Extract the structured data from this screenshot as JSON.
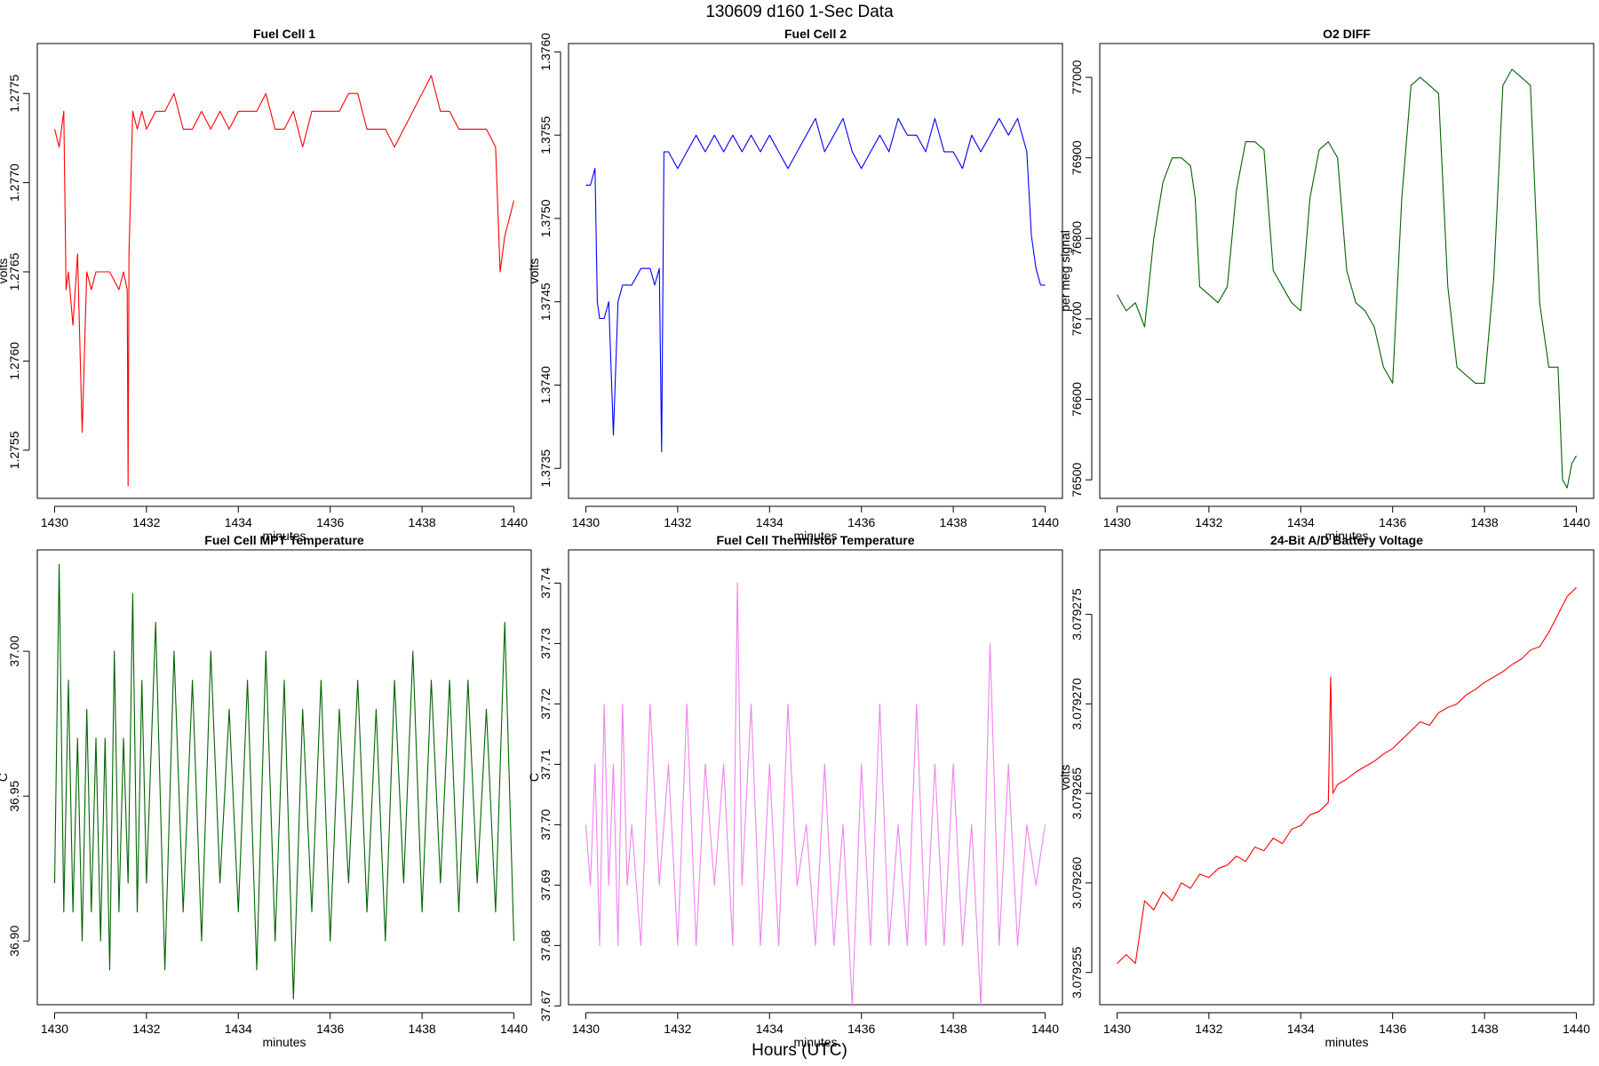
{
  "page": {
    "title": "130609   d160   1-Sec Data",
    "x_outer_label": "Hours (UTC)"
  },
  "chart_data": [
    {
      "type": "line",
      "title": "Fuel Cell 1",
      "xlabel": "minutes",
      "ylabel": "volts",
      "color": "#ff0000",
      "xlim": [
        1430,
        1440
      ],
      "ylim": [
        1.27523,
        1.27778
      ],
      "xticks": [
        1430,
        1432,
        1434,
        1436,
        1438,
        1440
      ],
      "xtick_labels": [
        "1430",
        "1432",
        "1434",
        "1436",
        "1438",
        "1440"
      ],
      "yticks": [
        1.2755,
        1.276,
        1.2765,
        1.277,
        1.2775
      ],
      "ytick_labels": [
        "1.2755",
        "1.2760",
        "1.2765",
        "1.2770",
        "1.2775"
      ],
      "series": [
        {
          "x": [
            1430.0,
            1430.1,
            1430.2,
            1430.25,
            1430.3,
            1430.4,
            1430.5,
            1430.6,
            1430.7,
            1430.8,
            1430.9,
            1431.0,
            1431.2,
            1431.4,
            1431.5,
            1431.58,
            1431.6,
            1431.62,
            1431.7,
            1431.8,
            1431.9,
            1432.0,
            1432.2,
            1432.4,
            1432.6,
            1432.8,
            1433.0,
            1433.2,
            1433.4,
            1433.6,
            1433.8,
            1434.0,
            1434.2,
            1434.4,
            1434.6,
            1434.8,
            1435.0,
            1435.2,
            1435.4,
            1435.6,
            1435.8,
            1436.0,
            1436.2,
            1436.4,
            1436.6,
            1436.8,
            1437.0,
            1437.2,
            1437.4,
            1437.6,
            1437.8,
            1438.0,
            1438.2,
            1438.4,
            1438.6,
            1438.8,
            1439.0,
            1439.2,
            1439.4,
            1439.6,
            1439.7,
            1439.8,
            1439.9,
            1440.0
          ],
          "y": [
            1.2773,
            1.2772,
            1.2774,
            1.2764,
            1.2765,
            1.2762,
            1.2766,
            1.2756,
            1.2765,
            1.2764,
            1.2765,
            1.2765,
            1.2765,
            1.2764,
            1.2765,
            1.2764,
            1.2753,
            1.2766,
            1.2774,
            1.2773,
            1.2774,
            1.2773,
            1.2774,
            1.2774,
            1.2775,
            1.2773,
            1.2773,
            1.2774,
            1.2773,
            1.2774,
            1.2773,
            1.2774,
            1.2774,
            1.2774,
            1.2775,
            1.2773,
            1.2773,
            1.2774,
            1.2772,
            1.2774,
            1.2774,
            1.2774,
            1.2774,
            1.2775,
            1.2775,
            1.2773,
            1.2773,
            1.2773,
            1.2772,
            1.2773,
            1.2774,
            1.2775,
            1.2776,
            1.2774,
            1.2774,
            1.2773,
            1.2773,
            1.2773,
            1.2773,
            1.2772,
            1.2765,
            1.2767,
            1.2768,
            1.2769
          ]
        }
      ]
    },
    {
      "type": "line",
      "title": "Fuel Cell 2",
      "xlabel": "minutes",
      "ylabel": "volts",
      "color": "#0000ff",
      "xlim": [
        1430,
        1440
      ],
      "ylim": [
        1.37332,
        1.37605
      ],
      "xticks": [
        1430,
        1432,
        1434,
        1436,
        1438,
        1440
      ],
      "xtick_labels": [
        "1430",
        "1432",
        "1434",
        "1436",
        "1438",
        "1440"
      ],
      "yticks": [
        1.3735,
        1.374,
        1.3745,
        1.375,
        1.3755,
        1.376
      ],
      "ytick_labels": [
        "1.3735",
        "1.3740",
        "1.3745",
        "1.3750",
        "1.3755",
        "1.3760"
      ],
      "series": [
        {
          "x": [
            1430.0,
            1430.1,
            1430.2,
            1430.25,
            1430.3,
            1430.4,
            1430.5,
            1430.6,
            1430.7,
            1430.8,
            1430.9,
            1431.0,
            1431.2,
            1431.4,
            1431.5,
            1431.6,
            1431.65,
            1431.7,
            1431.8,
            1432.0,
            1432.2,
            1432.4,
            1432.6,
            1432.8,
            1433.0,
            1433.2,
            1433.4,
            1433.6,
            1433.8,
            1434.0,
            1434.2,
            1434.4,
            1434.6,
            1434.8,
            1435.0,
            1435.2,
            1435.4,
            1435.6,
            1435.8,
            1436.0,
            1436.2,
            1436.4,
            1436.6,
            1436.8,
            1437.0,
            1437.2,
            1437.4,
            1437.6,
            1437.8,
            1438.0,
            1438.2,
            1438.4,
            1438.6,
            1438.8,
            1439.0,
            1439.2,
            1439.4,
            1439.6,
            1439.7,
            1439.8,
            1439.9,
            1440.0
          ],
          "y": [
            1.3752,
            1.3752,
            1.3753,
            1.3745,
            1.3744,
            1.3744,
            1.3745,
            1.3737,
            1.3745,
            1.3746,
            1.3746,
            1.3746,
            1.3747,
            1.3747,
            1.3746,
            1.3747,
            1.3736,
            1.3754,
            1.3754,
            1.3753,
            1.3754,
            1.3755,
            1.3754,
            1.3755,
            1.3754,
            1.3755,
            1.3754,
            1.3755,
            1.3754,
            1.3755,
            1.3754,
            1.3753,
            1.3754,
            1.3755,
            1.3756,
            1.3754,
            1.3755,
            1.3756,
            1.3754,
            1.3753,
            1.3754,
            1.3755,
            1.3754,
            1.3756,
            1.3755,
            1.3755,
            1.3754,
            1.3756,
            1.3754,
            1.3754,
            1.3753,
            1.3755,
            1.3754,
            1.3755,
            1.3756,
            1.3755,
            1.3756,
            1.3754,
            1.3749,
            1.3747,
            1.3746,
            1.3746
          ]
        }
      ]
    },
    {
      "type": "line",
      "title": "O2 DIFF",
      "xlabel": "minutes",
      "ylabel": "per meg signal",
      "color": "#006400",
      "xlim": [
        1430,
        1440
      ],
      "ylim": [
        76477,
        77042
      ],
      "xticks": [
        1430,
        1432,
        1434,
        1436,
        1438,
        1440
      ],
      "xtick_labels": [
        "1430",
        "1432",
        "1434",
        "1436",
        "1438",
        "1440"
      ],
      "yticks": [
        76500,
        76600,
        76700,
        76800,
        76900,
        77000
      ],
      "ytick_labels": [
        "76500",
        "76600",
        "76700",
        "76800",
        "76900",
        "77000"
      ],
      "series": [
        {
          "x": [
            1430.0,
            1430.2,
            1430.4,
            1430.6,
            1430.8,
            1431.0,
            1431.2,
            1431.4,
            1431.6,
            1431.7,
            1431.8,
            1432.0,
            1432.2,
            1432.4,
            1432.6,
            1432.8,
            1433.0,
            1433.2,
            1433.4,
            1433.6,
            1433.8,
            1434.0,
            1434.2,
            1434.4,
            1434.6,
            1434.8,
            1435.0,
            1435.2,
            1435.4,
            1435.6,
            1435.8,
            1436.0,
            1436.2,
            1436.4,
            1436.6,
            1436.8,
            1437.0,
            1437.2,
            1437.4,
            1437.6,
            1437.8,
            1438.0,
            1438.2,
            1438.4,
            1438.6,
            1438.8,
            1439.0,
            1439.2,
            1439.4,
            1439.6,
            1439.7,
            1439.8,
            1439.9,
            1440.0
          ],
          "y": [
            76730,
            76710,
            76720,
            76690,
            76800,
            76870,
            76900,
            76900,
            76890,
            76850,
            76740,
            76730,
            76720,
            76740,
            76860,
            76920,
            76920,
            76910,
            76760,
            76740,
            76720,
            76710,
            76850,
            76910,
            76920,
            76900,
            76760,
            76720,
            76710,
            76690,
            76640,
            76620,
            76850,
            76990,
            77000,
            76990,
            76980,
            76740,
            76640,
            76630,
            76620,
            76620,
            76750,
            76990,
            77010,
            77000,
            76990,
            76720,
            76640,
            76640,
            76500,
            76490,
            76520,
            76530
          ]
        }
      ]
    },
    {
      "type": "line",
      "title": "Fuel Cell MPT Temperature",
      "xlabel": "minutes",
      "ylabel": "C",
      "color": "#006400",
      "xlim": [
        1430,
        1440
      ],
      "ylim": [
        36.878,
        37.035
      ],
      "xticks": [
        1430,
        1432,
        1434,
        1436,
        1438,
        1440
      ],
      "xtick_labels": [
        "1430",
        "1432",
        "1434",
        "1436",
        "1438",
        "1440"
      ],
      "yticks": [
        36.9,
        36.95,
        37.0
      ],
      "ytick_labels": [
        "36.90",
        "36.95",
        "37.00"
      ],
      "series": [
        {
          "x": [
            1430.0,
            1430.1,
            1430.2,
            1430.3,
            1430.4,
            1430.5,
            1430.6,
            1430.7,
            1430.8,
            1430.9,
            1431.0,
            1431.1,
            1431.2,
            1431.3,
            1431.4,
            1431.5,
            1431.6,
            1431.7,
            1431.8,
            1431.9,
            1432.0,
            1432.2,
            1432.4,
            1432.6,
            1432.8,
            1433.0,
            1433.2,
            1433.4,
            1433.6,
            1433.8,
            1434.0,
            1434.2,
            1434.4,
            1434.6,
            1434.8,
            1435.0,
            1435.2,
            1435.4,
            1435.6,
            1435.8,
            1436.0,
            1436.2,
            1436.4,
            1436.6,
            1436.8,
            1437.0,
            1437.2,
            1437.4,
            1437.6,
            1437.8,
            1438.0,
            1438.2,
            1438.4,
            1438.6,
            1438.8,
            1439.0,
            1439.2,
            1439.4,
            1439.6,
            1439.8,
            1440.0
          ],
          "y": [
            36.92,
            37.03,
            36.91,
            36.99,
            36.91,
            36.97,
            36.9,
            36.98,
            36.91,
            36.97,
            36.9,
            36.97,
            36.89,
            37.0,
            36.91,
            36.97,
            36.92,
            37.02,
            36.91,
            36.99,
            36.92,
            37.01,
            36.89,
            37.0,
            36.91,
            36.99,
            36.9,
            37.0,
            36.92,
            36.98,
            36.91,
            36.99,
            36.89,
            37.0,
            36.9,
            36.99,
            36.88,
            36.98,
            36.91,
            36.99,
            36.9,
            36.98,
            36.92,
            36.99,
            36.91,
            36.98,
            36.9,
            36.99,
            36.92,
            37.0,
            36.91,
            36.99,
            36.92,
            36.99,
            36.91,
            36.99,
            36.92,
            36.98,
            36.91,
            37.01,
            36.9
          ]
        }
      ]
    },
    {
      "type": "line",
      "title": "Fuel Cell Thermistor Temperature",
      "xlabel": "minutes",
      "ylabel": "C",
      "color": "#ee82ee",
      "xlim": [
        1430,
        1440
      ],
      "ylim": [
        37.6702,
        37.7455
      ],
      "xticks": [
        1430,
        1432,
        1434,
        1436,
        1438,
        1440
      ],
      "xtick_labels": [
        "1430",
        "1432",
        "1434",
        "1436",
        "1438",
        "1440"
      ],
      "yticks": [
        37.67,
        37.68,
        37.69,
        37.7,
        37.71,
        37.72,
        37.73,
        37.74
      ],
      "ytick_labels": [
        "37.67",
        "37.68",
        "37.69",
        "37.70",
        "37.71",
        "37.72",
        "37.73",
        "37.74"
      ],
      "series": [
        {
          "x": [
            1430.0,
            1430.1,
            1430.2,
            1430.3,
            1430.4,
            1430.5,
            1430.6,
            1430.7,
            1430.8,
            1430.9,
            1431.0,
            1431.2,
            1431.4,
            1431.6,
            1431.8,
            1432.0,
            1432.2,
            1432.4,
            1432.6,
            1432.8,
            1433.0,
            1433.2,
            1433.3,
            1433.4,
            1433.6,
            1433.8,
            1434.0,
            1434.2,
            1434.4,
            1434.6,
            1434.8,
            1435.0,
            1435.2,
            1435.4,
            1435.6,
            1435.8,
            1436.0,
            1436.2,
            1436.4,
            1436.6,
            1436.8,
            1437.0,
            1437.2,
            1437.4,
            1437.6,
            1437.8,
            1438.0,
            1438.2,
            1438.4,
            1438.6,
            1438.8,
            1439.0,
            1439.2,
            1439.4,
            1439.6,
            1439.8,
            1440.0
          ],
          "y": [
            37.7,
            37.69,
            37.71,
            37.68,
            37.72,
            37.69,
            37.71,
            37.68,
            37.72,
            37.69,
            37.7,
            37.68,
            37.72,
            37.69,
            37.71,
            37.68,
            37.72,
            37.68,
            37.71,
            37.69,
            37.71,
            37.68,
            37.74,
            37.69,
            37.72,
            37.68,
            37.71,
            37.68,
            37.72,
            37.69,
            37.7,
            37.68,
            37.71,
            37.68,
            37.7,
            37.67,
            37.71,
            37.68,
            37.72,
            37.68,
            37.7,
            37.68,
            37.72,
            37.68,
            37.71,
            37.68,
            37.71,
            37.68,
            37.7,
            37.67,
            37.73,
            37.68,
            37.71,
            37.68,
            37.7,
            37.69,
            37.7
          ]
        }
      ]
    },
    {
      "type": "line",
      "title": "24-Bit A/D Battery Voltage",
      "xlabel": "minutes",
      "ylabel": "volts",
      "color": "#ff0000",
      "xlim": [
        1430,
        1440
      ],
      "ylim": [
        3.0792532,
        3.0792786
      ],
      "xticks": [
        1430,
        1432,
        1434,
        1436,
        1438,
        1440
      ],
      "xtick_labels": [
        "1430",
        "1432",
        "1434",
        "1436",
        "1438",
        "1440"
      ],
      "yticks": [
        3.079255,
        3.07926,
        3.079265,
        3.07927,
        3.079275
      ],
      "ytick_labels": [
        "3.079255",
        "3.079260",
        "3.079265",
        "3.079270",
        "3.079275"
      ],
      "series": [
        {
          "x": [
            1430.0,
            1430.2,
            1430.4,
            1430.6,
            1430.8,
            1431.0,
            1431.2,
            1431.4,
            1431.6,
            1431.8,
            1432.0,
            1432.2,
            1432.4,
            1432.6,
            1432.8,
            1433.0,
            1433.2,
            1433.4,
            1433.6,
            1433.8,
            1434.0,
            1434.2,
            1434.4,
            1434.6,
            1434.65,
            1434.7,
            1434.8,
            1435.0,
            1435.2,
            1435.4,
            1435.6,
            1435.8,
            1436.0,
            1436.2,
            1436.4,
            1436.6,
            1436.8,
            1437.0,
            1437.2,
            1437.4,
            1437.6,
            1437.8,
            1438.0,
            1438.2,
            1438.4,
            1438.6,
            1438.8,
            1439.0,
            1439.2,
            1439.4,
            1439.6,
            1439.8,
            1440.0
          ],
          "y": [
            3.0792555,
            3.079256,
            3.0792555,
            3.079259,
            3.0792585,
            3.0792595,
            3.079259,
            3.07926,
            3.0792597,
            3.0792605,
            3.0792603,
            3.0792608,
            3.079261,
            3.0792615,
            3.0792612,
            3.079262,
            3.0792618,
            3.0792625,
            3.0792622,
            3.079263,
            3.0792632,
            3.0792638,
            3.079264,
            3.0792645,
            3.0792715,
            3.079265,
            3.0792655,
            3.0792658,
            3.0792662,
            3.0792665,
            3.0792668,
            3.0792672,
            3.0792675,
            3.079268,
            3.0792685,
            3.079269,
            3.0792688,
            3.0792695,
            3.0792698,
            3.07927,
            3.0792705,
            3.0792708,
            3.0792712,
            3.0792715,
            3.0792718,
            3.0792722,
            3.0792725,
            3.079273,
            3.0792732,
            3.079274,
            3.079275,
            3.079276,
            3.0792765
          ]
        }
      ]
    }
  ]
}
